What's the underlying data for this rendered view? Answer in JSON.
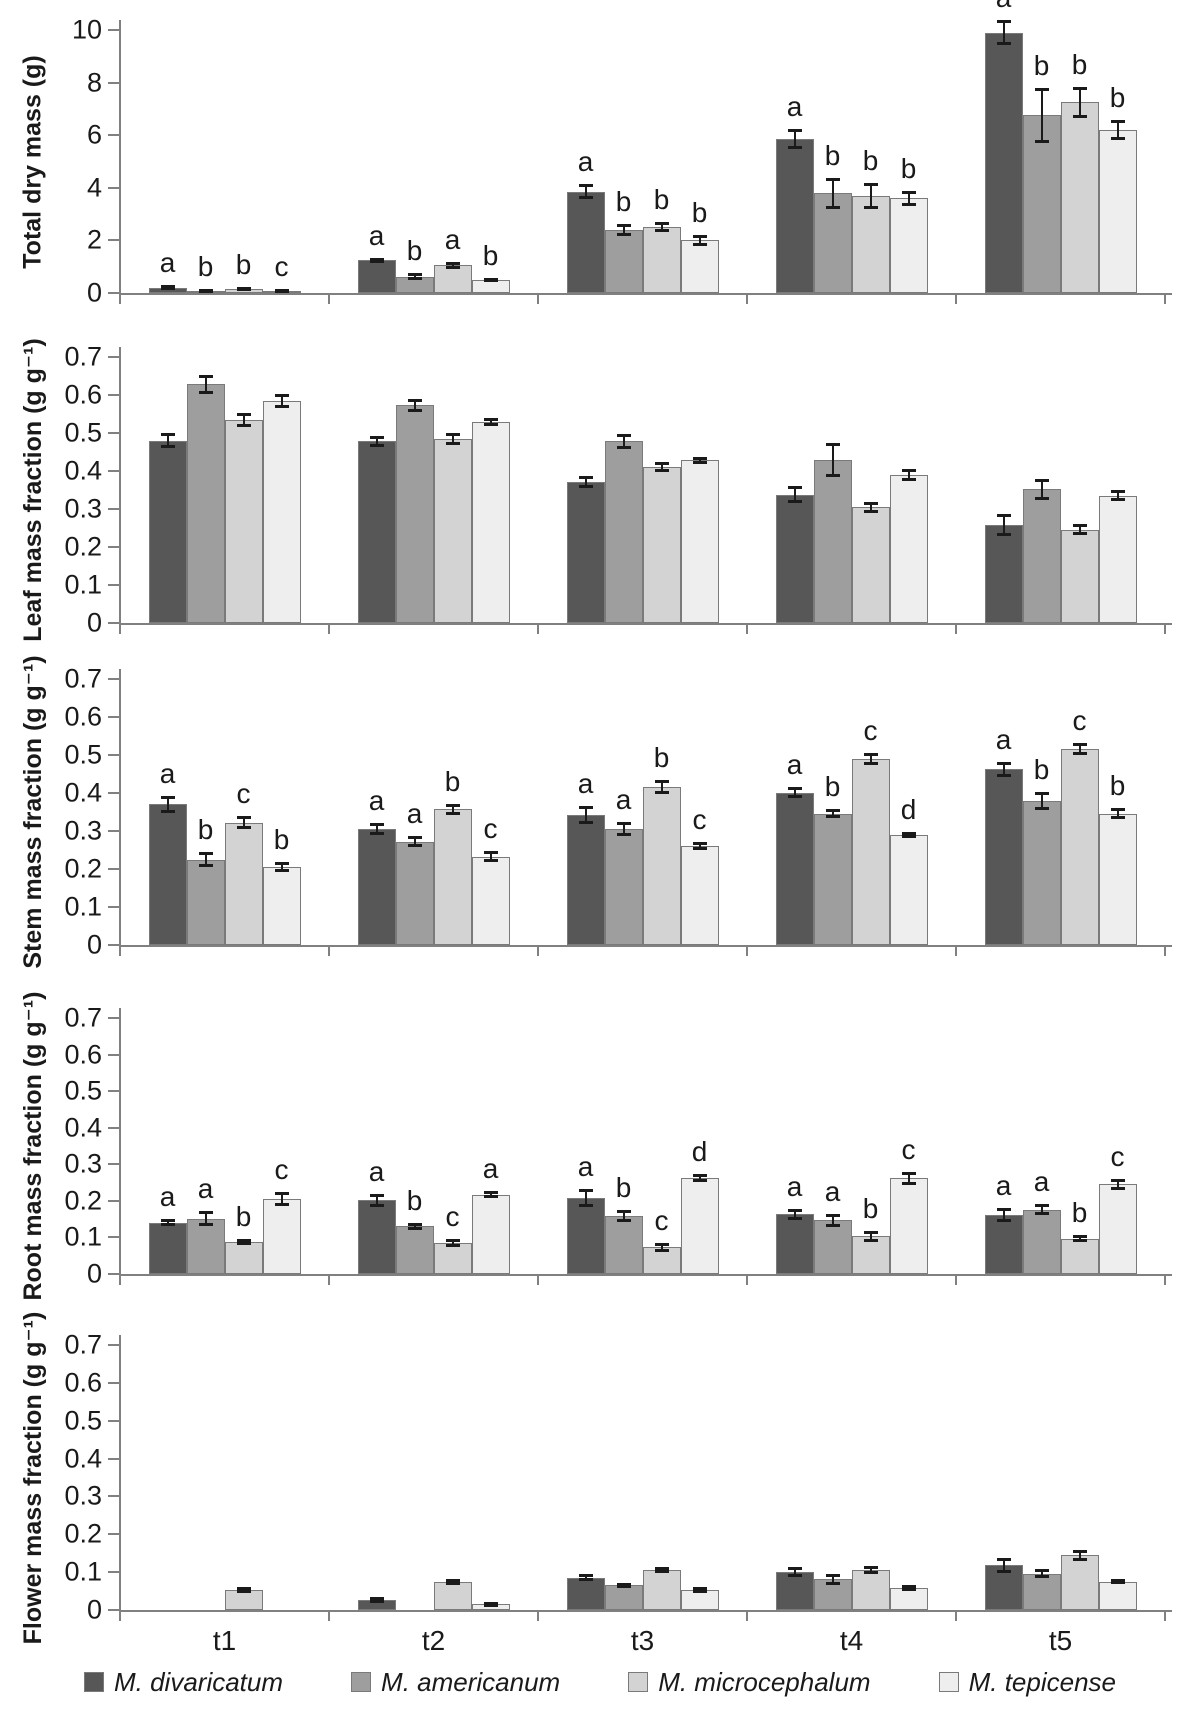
{
  "x_categories": [
    "t1",
    "t2",
    "t3",
    "t4",
    "t5"
  ],
  "colors": {
    "axis": "#808080",
    "error_bar": "#1a1a1a",
    "bar_border": "#7a7a7a",
    "series": [
      "#575757",
      "#9e9e9e",
      "#d3d3d3",
      "#eeeeee"
    ]
  },
  "legend": {
    "items": [
      {
        "label": "M. divaricatum",
        "color": "#575757"
      },
      {
        "label": "M. americanum",
        "color": "#9e9e9e"
      },
      {
        "label": "M. microcephalum",
        "color": "#d3d3d3"
      },
      {
        "label": "M. tepicense",
        "color": "#eeeeee"
      }
    ]
  },
  "chart_data": [
    {
      "type": "bar",
      "ylabel": "Total dry mass (g)",
      "ylim": [
        0,
        10
      ],
      "yticks": [
        0,
        2,
        4,
        6,
        8,
        10
      ],
      "ytick_labels": [
        "0",
        "2",
        "4",
        "6",
        "8",
        "10"
      ],
      "grid": false,
      "series": [
        {
          "name": "M. divaricatum",
          "color": "#575757",
          "values": [
            0.2,
            1.25,
            3.85,
            5.85,
            9.9
          ],
          "errors": [
            0.05,
            0.06,
            0.25,
            0.35,
            0.45
          ],
          "letters": [
            "a",
            "a",
            "a",
            "a",
            "a"
          ]
        },
        {
          "name": "M. americanum",
          "color": "#9e9e9e",
          "values": [
            0.07,
            0.62,
            2.4,
            3.8,
            6.75
          ],
          "errors": [
            0.03,
            0.1,
            0.18,
            0.55,
            1.0
          ],
          "letters": [
            "b",
            "b",
            "b",
            "b",
            "b"
          ]
        },
        {
          "name": "M. microcephalum",
          "color": "#d3d3d3",
          "values": [
            0.15,
            1.05,
            2.5,
            3.7,
            7.25
          ],
          "errors": [
            0.04,
            0.09,
            0.15,
            0.45,
            0.55
          ],
          "letters": [
            "b",
            "a",
            "b",
            "b",
            "b"
          ]
        },
        {
          "name": "M. tepicense",
          "color": "#eeeeee",
          "values": [
            0.07,
            0.5,
            2.0,
            3.6,
            6.2
          ],
          "errors": [
            0.03,
            0.05,
            0.18,
            0.25,
            0.35
          ],
          "letters": [
            "c",
            "b",
            "b",
            "b",
            "b"
          ]
        }
      ]
    },
    {
      "type": "bar",
      "ylabel": "Leaf mass fraction (g g⁻¹)",
      "ylim": [
        0,
        0.7
      ],
      "yticks": [
        0,
        0.1,
        0.2,
        0.3,
        0.4,
        0.5,
        0.6,
        0.7
      ],
      "ytick_labels": [
        "0",
        "0.1",
        "0.2",
        "0.3",
        "0.4",
        "0.5",
        "0.6",
        "0.7"
      ],
      "grid": false,
      "series": [
        {
          "name": "M. divaricatum",
          "color": "#575757",
          "values": [
            0.48,
            0.478,
            0.37,
            0.338,
            0.258
          ],
          "errors": [
            0.018,
            0.012,
            0.013,
            0.02,
            0.027
          ],
          "letters": [
            null,
            null,
            null,
            null,
            null
          ]
        },
        {
          "name": "M. americanum",
          "color": "#9e9e9e",
          "values": [
            0.628,
            0.573,
            0.478,
            0.428,
            0.352
          ],
          "errors": [
            0.022,
            0.015,
            0.018,
            0.042,
            0.025
          ],
          "letters": [
            null,
            null,
            null,
            null,
            null
          ]
        },
        {
          "name": "M. microcephalum",
          "color": "#d3d3d3",
          "values": [
            0.535,
            0.484,
            0.41,
            0.305,
            0.245
          ],
          "errors": [
            0.016,
            0.013,
            0.01,
            0.012,
            0.012
          ],
          "letters": [
            null,
            null,
            null,
            null,
            null
          ]
        },
        {
          "name": "M. tepicense",
          "color": "#eeeeee",
          "values": [
            0.584,
            0.53,
            0.428,
            0.39,
            0.335
          ],
          "errors": [
            0.015,
            0.008,
            0.006,
            0.013,
            0.012
          ],
          "letters": [
            null,
            null,
            null,
            null,
            null
          ]
        }
      ]
    },
    {
      "type": "bar",
      "ylabel": "Stem mass fraction (g g⁻¹)",
      "ylim": [
        0,
        0.7
      ],
      "yticks": [
        0,
        0.1,
        0.2,
        0.3,
        0.4,
        0.5,
        0.6,
        0.7
      ],
      "ytick_labels": [
        "0",
        "0.1",
        "0.2",
        "0.3",
        "0.4",
        "0.5",
        "0.6",
        "0.7"
      ],
      "grid": false,
      "series": [
        {
          "name": "M. divaricatum",
          "color": "#575757",
          "values": [
            0.37,
            0.306,
            0.342,
            0.401,
            0.462
          ],
          "errors": [
            0.02,
            0.013,
            0.02,
            0.012,
            0.016
          ],
          "letters": [
            "a",
            "a",
            "a",
            "a",
            "a"
          ]
        },
        {
          "name": "M. americanum",
          "color": "#9e9e9e",
          "values": [
            0.225,
            0.272,
            0.305,
            0.346,
            0.38
          ],
          "errors": [
            0.018,
            0.012,
            0.016,
            0.01,
            0.021
          ],
          "letters": [
            "b",
            "a",
            "a",
            "b",
            "b"
          ]
        },
        {
          "name": "M. microcephalum",
          "color": "#d3d3d3",
          "values": [
            0.322,
            0.357,
            0.416,
            0.49,
            0.516
          ],
          "errors": [
            0.015,
            0.012,
            0.015,
            0.013,
            0.013
          ],
          "letters": [
            "c",
            "b",
            "b",
            "c",
            "c"
          ]
        },
        {
          "name": "M. tepicense",
          "color": "#eeeeee",
          "values": [
            0.206,
            0.232,
            0.261,
            0.29,
            0.346
          ],
          "errors": [
            0.01,
            0.012,
            0.008,
            0.006,
            0.012
          ],
          "letters": [
            "b",
            "c",
            "c",
            "d",
            "b"
          ]
        }
      ]
    },
    {
      "type": "bar",
      "ylabel": "Root mass fraction (g g⁻¹)",
      "ylim": [
        0,
        0.7
      ],
      "yticks": [
        0,
        0.1,
        0.2,
        0.3,
        0.4,
        0.5,
        0.6,
        0.7
      ],
      "ytick_labels": [
        "0",
        "0.1",
        "0.2",
        "0.3",
        "0.4",
        "0.5",
        "0.6",
        "0.7"
      ],
      "grid": false,
      "series": [
        {
          "name": "M. divaricatum",
          "color": "#575757",
          "values": [
            0.14,
            0.201,
            0.208,
            0.163,
            0.162
          ],
          "errors": [
            0.007,
            0.015,
            0.021,
            0.013,
            0.016
          ],
          "letters": [
            "a",
            "a",
            "a",
            "a",
            "a"
          ]
        },
        {
          "name": "M. americanum",
          "color": "#9e9e9e",
          "values": [
            0.151,
            0.13,
            0.158,
            0.147,
            0.176
          ],
          "errors": [
            0.018,
            0.008,
            0.013,
            0.015,
            0.013
          ],
          "letters": [
            "a",
            "b",
            "b",
            "a",
            "a"
          ]
        },
        {
          "name": "M. microcephalum",
          "color": "#d3d3d3",
          "values": [
            0.088,
            0.085,
            0.073,
            0.103,
            0.097
          ],
          "errors": [
            0.005,
            0.009,
            0.009,
            0.013,
            0.008
          ],
          "letters": [
            "b",
            "c",
            "c",
            "b",
            "b"
          ]
        },
        {
          "name": "M. tepicense",
          "color": "#eeeeee",
          "values": [
            0.206,
            0.217,
            0.262,
            0.262,
            0.245
          ],
          "errors": [
            0.016,
            0.006,
            0.009,
            0.015,
            0.012
          ],
          "letters": [
            "c",
            "a",
            "d",
            "c",
            "c"
          ]
        }
      ]
    },
    {
      "type": "bar",
      "ylabel": "Flower mass fraction (g g⁻¹)",
      "ylim": [
        0,
        0.7
      ],
      "yticks": [
        0,
        0.1,
        0.2,
        0.3,
        0.4,
        0.5,
        0.6,
        0.7
      ],
      "ytick_labels": [
        "0",
        "0.1",
        "0.2",
        "0.3",
        "0.4",
        "0.5",
        "0.6",
        "0.7"
      ],
      "grid": false,
      "series": [
        {
          "name": "M. divaricatum",
          "color": "#575757",
          "values": [
            0,
            0.027,
            0.085,
            0.101,
            0.118
          ],
          "errors": [
            0,
            0.005,
            0.007,
            0.01,
            0.018
          ],
          "letters": [
            null,
            null,
            null,
            null,
            null
          ]
        },
        {
          "name": "M. americanum",
          "color": "#9e9e9e",
          "values": [
            0,
            0,
            0.065,
            0.081,
            0.096
          ],
          "errors": [
            0,
            0,
            0.005,
            0.012,
            0.01
          ],
          "letters": [
            null,
            null,
            null,
            null,
            null
          ]
        },
        {
          "name": "M. microcephalum",
          "color": "#d3d3d3",
          "values": [
            0.052,
            0.073,
            0.106,
            0.106,
            0.145
          ],
          "errors": [
            0.005,
            0.005,
            0.005,
            0.008,
            0.012
          ],
          "letters": [
            null,
            null,
            null,
            null,
            null
          ]
        },
        {
          "name": "M. tepicense",
          "color": "#eeeeee",
          "values": [
            0,
            0.015,
            0.052,
            0.058,
            0.075
          ],
          "errors": [
            0,
            0.004,
            0.005,
            0.005,
            0.004
          ],
          "letters": [
            null,
            null,
            null,
            null,
            null
          ]
        }
      ]
    }
  ]
}
